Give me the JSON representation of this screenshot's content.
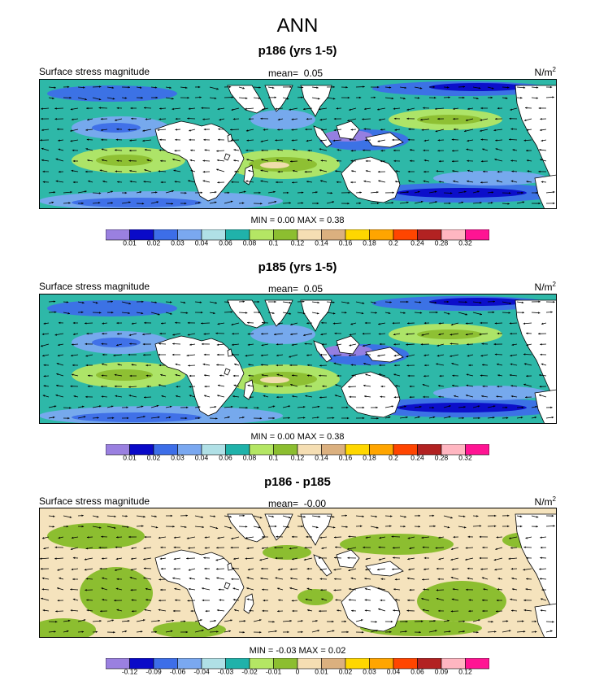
{
  "title": "ANN",
  "colors": {
    "palette": [
      "#9a80e0",
      "#0a0ac8",
      "#3d6ee8",
      "#7aa8f0",
      "#b0e0e6",
      "#20b2aa",
      "#b4e664",
      "#8cbe30",
      "#f5deb3",
      "#dbb07f",
      "#ffd700",
      "#ffa500",
      "#ff4500",
      "#b22222",
      "#ffb6c1",
      "#ff1493"
    ],
    "ocean_base": "#2eb8a8",
    "land": "#ffffff",
    "diff_base": "#f5e3bd",
    "diff_green": "#8cbe30"
  },
  "panels": [
    {
      "title": "p186 (yrs 1-5)",
      "left_label": "Surface stress magnitude",
      "mean_label": "mean=",
      "mean_value": "0.05",
      "units_base": "N/m",
      "units_exp": "2",
      "min_label": "MIN =",
      "min_value": "0.00",
      "max_label": "MAX =",
      "max_value": "0.38",
      "colorbar_ticks": [
        "0.01",
        "0.02",
        "0.03",
        "0.04",
        "0.06",
        "0.08",
        "0.1",
        "0.12",
        "0.14",
        "0.16",
        "0.18",
        "0.2",
        "0.24",
        "0.28",
        "0.32"
      ]
    },
    {
      "title": "p185 (yrs 1-5)",
      "left_label": "Surface stress magnitude",
      "mean_label": "mean=",
      "mean_value": "0.05",
      "units_base": "N/m",
      "units_exp": "2",
      "min_label": "MIN =",
      "min_value": "0.00",
      "max_label": "MAX =",
      "max_value": "0.38",
      "colorbar_ticks": [
        "0.01",
        "0.02",
        "0.03",
        "0.04",
        "0.06",
        "0.08",
        "0.1",
        "0.12",
        "0.14",
        "0.16",
        "0.18",
        "0.2",
        "0.24",
        "0.28",
        "0.32"
      ]
    },
    {
      "title": "p186 - p185",
      "left_label": "Surface stress magnitude",
      "mean_label": "mean=",
      "mean_value": "-0.00",
      "units_base": "N/m",
      "units_exp": "2",
      "min_label": "MIN =",
      "min_value": "-0.03",
      "max_label": "MAX =",
      "max_value": "0.02",
      "colorbar_ticks": [
        "-0.12",
        "-0.09",
        "-0.06",
        "-0.04",
        "-0.03",
        "-0.02",
        "-0.01",
        "0",
        "0.01",
        "0.02",
        "0.03",
        "0.04",
        "0.06",
        "0.09",
        "0.12"
      ]
    }
  ],
  "chart_data": [
    {
      "type": "heatmap",
      "title": "p186 (yrs 1-5)",
      "variable": "Surface stress magnitude",
      "units": "N/m^2",
      "mean": 0.05,
      "min": 0.0,
      "max": 0.38,
      "levels": [
        0.01,
        0.02,
        0.03,
        0.04,
        0.06,
        0.08,
        0.1,
        0.12,
        0.14,
        0.16,
        0.18,
        0.2,
        0.24,
        0.28,
        0.32
      ]
    },
    {
      "type": "heatmap",
      "title": "p185 (yrs 1-5)",
      "variable": "Surface stress magnitude",
      "units": "N/m^2",
      "mean": 0.05,
      "min": 0.0,
      "max": 0.38,
      "levels": [
        0.01,
        0.02,
        0.03,
        0.04,
        0.06,
        0.08,
        0.1,
        0.12,
        0.14,
        0.16,
        0.18,
        0.2,
        0.24,
        0.28,
        0.32
      ]
    },
    {
      "type": "heatmap",
      "title": "p186 - p185",
      "variable": "Surface stress magnitude",
      "units": "N/m^2",
      "mean": -0.0,
      "min": -0.03,
      "max": 0.02,
      "levels": [
        -0.12,
        -0.09,
        -0.06,
        -0.04,
        -0.03,
        -0.02,
        -0.01,
        0,
        0.01,
        0.02,
        0.03,
        0.04,
        0.06,
        0.09,
        0.12
      ]
    }
  ]
}
